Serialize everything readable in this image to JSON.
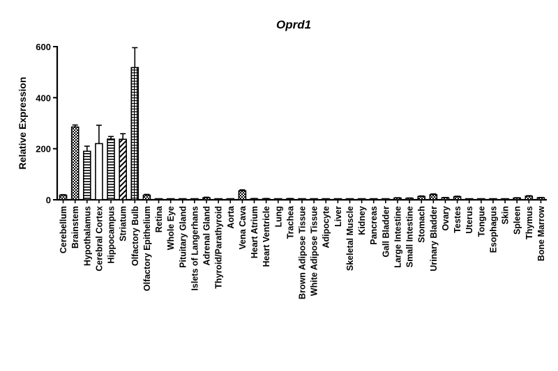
{
  "chart_data": {
    "type": "bar",
    "title": "Oprd1",
    "xlabel": "",
    "ylabel": "Relative Expression",
    "ylim": [
      0,
      600
    ],
    "yticks": [
      "0",
      "200",
      "400",
      "600"
    ],
    "grid": false,
    "categories": [
      "Cerebellum",
      "Brainstem",
      "Hypothalamus",
      "Cerebral Cortex",
      "Hippocampus",
      "Striatum",
      "Olfactory Bulb",
      "Olfactory Epithelium",
      "Retina",
      "Whole Eye",
      "Pituitary Gland",
      "Islets of Langerhans",
      "Adrenal Gland",
      "Thyroid/Parathyroid",
      "Aorta",
      "Vena Cava",
      "Heart Atrium",
      "Heart Ventricle",
      "Lung",
      "Trachea",
      "Brown Adipose Tissue",
      "White Adipose Tissue",
      "Adipocyte",
      "Liver",
      "Skeletal Muscle",
      "Kidney",
      "Pancreas",
      "Gall Bladder",
      "Large Intestine",
      "Small Intestine",
      "Stomach",
      "Urinary Bladder",
      "Ovary",
      "Testes",
      "Uterus",
      "Tongue",
      "Esophagus",
      "Skin",
      "Spleen",
      "Thymus",
      "Bone Marrow"
    ],
    "values": [
      18,
      285,
      190,
      220,
      238,
      237,
      518,
      18,
      1,
      1,
      1,
      2,
      8,
      1,
      1,
      35,
      4,
      4,
      1,
      4,
      1,
      1,
      1,
      1,
      1,
      1,
      1,
      1,
      7,
      6,
      13,
      20,
      8,
      12,
      1,
      1,
      1,
      1,
      7,
      14,
      8
    ],
    "errors": [
      2,
      8,
      20,
      72,
      10,
      22,
      78,
      3,
      0,
      0,
      0,
      0,
      2,
      0,
      0,
      4,
      1,
      1,
      0,
      1,
      0,
      0,
      0,
      0,
      0,
      0,
      0,
      0,
      1,
      1,
      2,
      3,
      1,
      2,
      0,
      0,
      0,
      0,
      1,
      2,
      1
    ],
    "patterns": [
      "checker",
      "checker",
      "hlines",
      "white",
      "hlines",
      "diag",
      "grid",
      "checker",
      "white",
      "white",
      "white",
      "white",
      "checker",
      "white",
      "white",
      "checker",
      "white",
      "checker",
      "white",
      "white",
      "white",
      "white",
      "white",
      "white",
      "white",
      "white",
      "white",
      "white",
      "checker",
      "checker",
      "checker",
      "checker",
      "checker",
      "checker",
      "white",
      "white",
      "white",
      "white",
      "checker",
      "checker",
      "checker"
    ]
  }
}
